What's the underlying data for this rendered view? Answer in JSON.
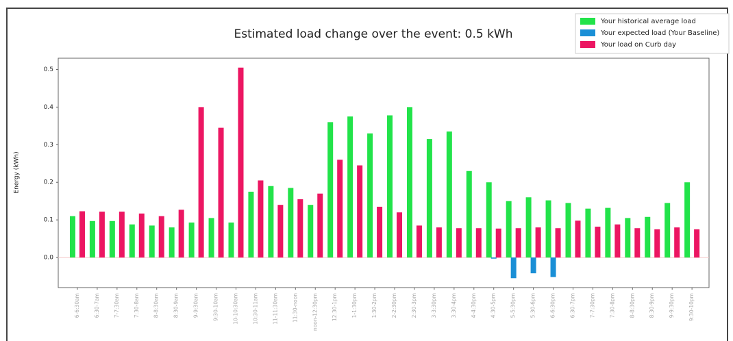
{
  "chart_data": {
    "type": "bar",
    "title": "Estimated load change over the event: 0.5 kWh",
    "y_label": "Energy (kWh)",
    "categories": [
      "6-6:30am",
      "6:30-7am",
      "7-7:30am",
      "7:30-8am",
      "8-8:30am",
      "8:30-9am",
      "9-9:30am",
      "9:30-10am",
      "10-10:30am",
      "10:30-11am",
      "11-11:30am",
      "11:30-noon",
      "noon-12:30pm",
      "12:30-1pm",
      "1-1:30pm",
      "1:30-2pm",
      "2-2:30pm",
      "2:30-3pm",
      "3-3:30pm",
      "3:30-4pm",
      "4-4:30pm",
      "4:30-5pm",
      "5-5:30pm",
      "5:30-6pm",
      "6-6:30pm",
      "6:30-7pm",
      "7-7:30pm",
      "7:30-8pm",
      "8-8:30pm",
      "8:30-9pm",
      "9-9:30pm",
      "9:30-10pm"
    ],
    "series": [
      {
        "name": "Your historical average load",
        "color": "#22e34a",
        "values": [
          0.11,
          0.097,
          0.097,
          0.088,
          0.085,
          0.08,
          0.093,
          0.105,
          0.093,
          0.175,
          0.19,
          0.185,
          0.14,
          0.36,
          0.375,
          0.33,
          0.378,
          0.4,
          0.315,
          0.335,
          0.23,
          0.2,
          0.15,
          0.16,
          0.152,
          0.145,
          0.13,
          0.132,
          0.105,
          0.108,
          0.145,
          0.2
        ]
      },
      {
        "name": "Your expected load (Your Baseline)",
        "color": "#1a8fd6",
        "values": [
          null,
          null,
          null,
          null,
          null,
          null,
          null,
          null,
          null,
          null,
          null,
          null,
          null,
          null,
          null,
          null,
          null,
          null,
          null,
          null,
          null,
          -0.003,
          -0.055,
          -0.042,
          -0.052,
          null,
          null,
          null,
          null,
          null,
          null,
          null
        ]
      },
      {
        "name": "Your load on Curb day",
        "color": "#ec1662",
        "values": [
          0.123,
          0.122,
          0.122,
          0.117,
          0.11,
          0.127,
          0.4,
          0.345,
          0.505,
          0.205,
          0.14,
          0.155,
          0.17,
          0.26,
          0.245,
          0.135,
          0.12,
          0.085,
          0.08,
          0.078,
          0.078,
          0.077,
          0.078,
          0.08,
          0.078,
          0.098,
          0.082,
          0.088,
          0.078,
          0.075,
          0.08,
          0.075
        ]
      }
    ],
    "ylim": [
      -0.08,
      0.53
    ],
    "yticks": [
      {
        "value": 0,
        "label": "0.0"
      },
      0.1,
      0.2,
      0.3,
      0.4,
      0.5
    ],
    "legend": "upper right"
  }
}
